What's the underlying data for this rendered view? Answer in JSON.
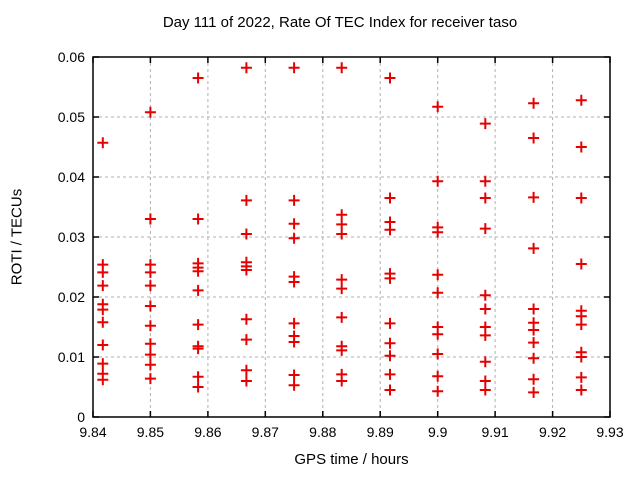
{
  "chart_data": {
    "type": "scatter",
    "title": "Day 111 of 2022, Rate Of TEC Index for receiver taso",
    "xlabel": "GPS time / hours",
    "ylabel": "ROTI / TECUs",
    "xlim": [
      9.84,
      9.93
    ],
    "ylim": [
      0,
      0.06
    ],
    "x_ticks": [
      "9.84",
      "9.85",
      "9.86",
      "9.87",
      "9.88",
      "9.89",
      "9.9",
      "9.91",
      "9.92",
      "9.93"
    ],
    "y_ticks": [
      "0",
      "0.01",
      "0.02",
      "0.03",
      "0.04",
      "0.05",
      "0.06"
    ],
    "grid": true,
    "legend": false,
    "marker": "plus",
    "marker_color": "#e60000",
    "grid_color": "#b0b0b0",
    "frame_color": "#000000",
    "series": [
      {
        "name": "ROTI",
        "points": [
          [
            9.8417,
            0.0457
          ],
          [
            9.8417,
            0.0254
          ],
          [
            9.8417,
            0.0241
          ],
          [
            9.8417,
            0.0219
          ],
          [
            9.8417,
            0.0188
          ],
          [
            9.8417,
            0.0179
          ],
          [
            9.8417,
            0.0158
          ],
          [
            9.8417,
            0.012
          ],
          [
            9.8417,
            0.0089
          ],
          [
            9.8417,
            0.0072
          ],
          [
            9.8417,
            0.0062
          ],
          [
            9.85,
            0.0508
          ],
          [
            9.85,
            0.033
          ],
          [
            9.85,
            0.0254
          ],
          [
            9.85,
            0.0241
          ],
          [
            9.85,
            0.0219
          ],
          [
            9.85,
            0.0185
          ],
          [
            9.85,
            0.0152
          ],
          [
            9.85,
            0.0122
          ],
          [
            9.85,
            0.0104
          ],
          [
            9.85,
            0.0087
          ],
          [
            9.85,
            0.0064
          ],
          [
            9.8583,
            0.0565
          ],
          [
            9.8583,
            0.033
          ],
          [
            9.8583,
            0.0256
          ],
          [
            9.8583,
            0.0249
          ],
          [
            9.8583,
            0.0243
          ],
          [
            9.8583,
            0.0211
          ],
          [
            9.8583,
            0.0154
          ],
          [
            9.8583,
            0.0118
          ],
          [
            9.8583,
            0.0114
          ],
          [
            9.8583,
            0.0067
          ],
          [
            9.8583,
            0.005
          ],
          [
            9.8667,
            0.0582
          ],
          [
            9.8667,
            0.0361
          ],
          [
            9.8667,
            0.0305
          ],
          [
            9.8667,
            0.0258
          ],
          [
            9.8667,
            0.0251
          ],
          [
            9.8667,
            0.0245
          ],
          [
            9.8667,
            0.0163
          ],
          [
            9.8667,
            0.0129
          ],
          [
            9.8667,
            0.0078
          ],
          [
            9.8667,
            0.006
          ],
          [
            9.875,
            0.0582
          ],
          [
            9.875,
            0.0361
          ],
          [
            9.875,
            0.0322
          ],
          [
            9.875,
            0.0298
          ],
          [
            9.875,
            0.0234
          ],
          [
            9.875,
            0.0225
          ],
          [
            9.875,
            0.0156
          ],
          [
            9.875,
            0.0135
          ],
          [
            9.875,
            0.0125
          ],
          [
            9.875,
            0.007
          ],
          [
            9.875,
            0.0053
          ],
          [
            9.8833,
            0.0582
          ],
          [
            9.8833,
            0.0337
          ],
          [
            9.8833,
            0.0321
          ],
          [
            9.8833,
            0.0305
          ],
          [
            9.8833,
            0.0229
          ],
          [
            9.8833,
            0.0214
          ],
          [
            9.8833,
            0.0166
          ],
          [
            9.8833,
            0.0118
          ],
          [
            9.8833,
            0.0111
          ],
          [
            9.8833,
            0.0071
          ],
          [
            9.8833,
            0.006
          ],
          [
            9.8917,
            0.0565
          ],
          [
            9.8917,
            0.0365
          ],
          [
            9.8917,
            0.0325
          ],
          [
            9.8917,
            0.0312
          ],
          [
            9.8917,
            0.0239
          ],
          [
            9.8917,
            0.0231
          ],
          [
            9.8917,
            0.0156
          ],
          [
            9.8917,
            0.0123
          ],
          [
            9.8917,
            0.0102
          ],
          [
            9.8917,
            0.0071
          ],
          [
            9.8917,
            0.0045
          ],
          [
            9.9,
            0.0517
          ],
          [
            9.9,
            0.0393
          ],
          [
            9.9,
            0.0316
          ],
          [
            9.9,
            0.0308
          ],
          [
            9.9,
            0.0237
          ],
          [
            9.9,
            0.0207
          ],
          [
            9.9,
            0.015
          ],
          [
            9.9,
            0.0138
          ],
          [
            9.9,
            0.0105
          ],
          [
            9.9,
            0.0068
          ],
          [
            9.9,
            0.0043
          ],
          [
            9.9083,
            0.0489
          ],
          [
            9.9083,
            0.0393
          ],
          [
            9.9083,
            0.0365
          ],
          [
            9.9083,
            0.0314
          ],
          [
            9.9083,
            0.0203
          ],
          [
            9.9083,
            0.018
          ],
          [
            9.9083,
            0.015
          ],
          [
            9.9083,
            0.0136
          ],
          [
            9.9083,
            0.0092
          ],
          [
            9.9083,
            0.006
          ],
          [
            9.9083,
            0.0045
          ],
          [
            9.9167,
            0.0523
          ],
          [
            9.9167,
            0.0465
          ],
          [
            9.9167,
            0.0366
          ],
          [
            9.9167,
            0.0281
          ],
          [
            9.9167,
            0.018
          ],
          [
            9.9167,
            0.0157
          ],
          [
            9.9167,
            0.0145
          ],
          [
            9.9167,
            0.0124
          ],
          [
            9.9167,
            0.0098
          ],
          [
            9.9167,
            0.0063
          ],
          [
            9.9167,
            0.0041
          ],
          [
            9.925,
            0.0528
          ],
          [
            9.925,
            0.045
          ],
          [
            9.925,
            0.0365
          ],
          [
            9.925,
            0.0255
          ],
          [
            9.925,
            0.0177
          ],
          [
            9.925,
            0.0168
          ],
          [
            9.925,
            0.0154
          ],
          [
            9.925,
            0.0108
          ],
          [
            9.925,
            0.01
          ],
          [
            9.925,
            0.0066
          ],
          [
            9.925,
            0.0045
          ]
        ]
      }
    ]
  }
}
